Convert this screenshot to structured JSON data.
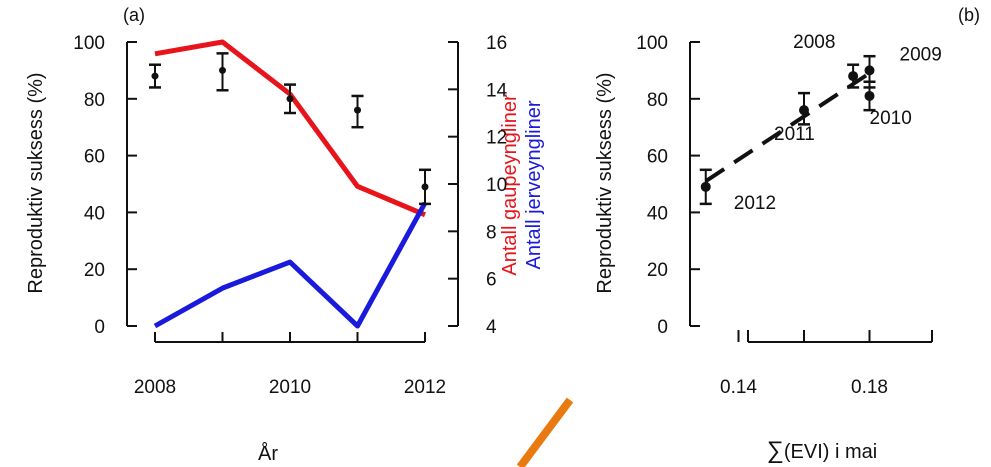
{
  "chart_data": [
    {
      "type": "line",
      "panel_label": "(a)",
      "xlabel": "År",
      "ylabel": "Reproduktiv suksess (%)",
      "ylabel_right_1": "Antall gaupeyngliner",
      "ylabel_right_2": "Antall jerveyngliner",
      "x_ticks": [
        "2008",
        "2010",
        "2012"
      ],
      "xlim": [
        2008,
        2012
      ],
      "ylim": [
        0,
        100
      ],
      "y_ticks": [
        "0",
        "20",
        "40",
        "60",
        "80",
        "100"
      ],
      "y2lim": [
        4,
        16
      ],
      "y2_ticks": [
        "4",
        "6",
        "8",
        "10",
        "12",
        "14",
        "16"
      ],
      "series": [
        {
          "name": "Antall gaupeyngliner",
          "axis": "right",
          "color": "#e8141c",
          "x": [
            2008,
            2009,
            2010,
            2011,
            2012
          ],
          "values": [
            15.5,
            16.0,
            13.8,
            9.9,
            8.7
          ]
        },
        {
          "name": "Antall jerveyngliner",
          "axis": "right",
          "color": "#1a1adc",
          "x": [
            2008,
            2009,
            2010,
            2011,
            2012
          ],
          "values": [
            4.0,
            5.6,
            6.7,
            4.0,
            9.2
          ]
        }
      ],
      "points": {
        "color": "#111",
        "x": [
          2008,
          2009,
          2010,
          2011,
          2012
        ],
        "values": [
          88,
          90,
          80,
          76,
          49
        ],
        "err_low": [
          84,
          83,
          75,
          70,
          43
        ],
        "err_high": [
          92,
          96,
          85,
          81,
          55
        ]
      }
    },
    {
      "type": "scatter",
      "panel_label": "(b)",
      "xlabel_symbol": "∑",
      "xlabel": "(EVI) i mai",
      "ylabel": "Reproduktiv suksess (%)",
      "xlim": [
        0.12,
        0.2
      ],
      "x_ticks": [
        "0.14",
        "0.18"
      ],
      "ylim": [
        0,
        100
      ],
      "y_ticks": [
        "0",
        "20",
        "40",
        "60",
        "80",
        "100"
      ],
      "points": [
        {
          "label": "2008",
          "x": 0.175,
          "y": 88,
          "err_low": 84,
          "err_high": 92
        },
        {
          "label": "2009",
          "x": 0.18,
          "y": 90,
          "err_low": 84,
          "err_high": 95
        },
        {
          "label": "2010",
          "x": 0.18,
          "y": 81,
          "err_low": 76,
          "err_high": 86
        },
        {
          "label": "2011",
          "x": 0.16,
          "y": 76,
          "err_low": 71,
          "err_high": 82
        },
        {
          "label": "2012",
          "x": 0.13,
          "y": 49,
          "err_low": 43,
          "err_high": 55
        }
      ],
      "trend": {
        "style": "dashed",
        "x": [
          0.13,
          0.18
        ],
        "y": [
          51,
          89
        ]
      }
    }
  ]
}
